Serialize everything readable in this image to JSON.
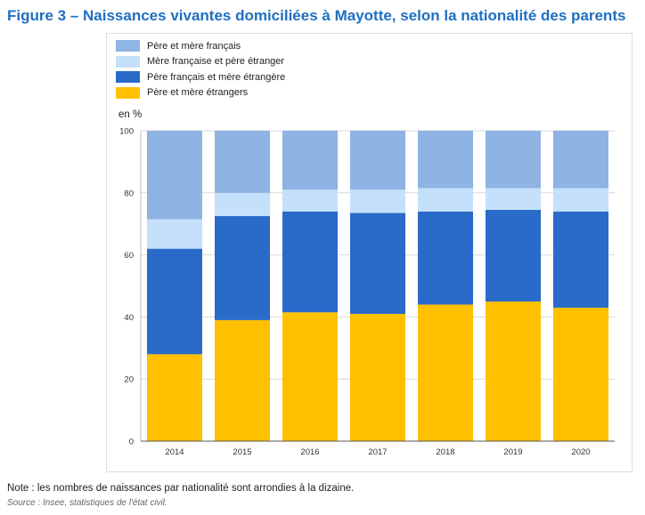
{
  "title": "Figure 3 – Naissances vivantes domiciliées à Mayotte, selon la nationalité des parents",
  "note": "Note : les nombres de naissances par nationalité sont arrondies à la dizaine.",
  "source": "Source : Insee, statistiques de l'état civil.",
  "chart_data": {
    "type": "bar",
    "stacked": true,
    "unit_label": "en %",
    "categories": [
      "2014",
      "2015",
      "2016",
      "2017",
      "2018",
      "2019",
      "2020"
    ],
    "ylim": [
      0,
      100
    ],
    "yticks": [
      "0",
      "20",
      "40",
      "60",
      "80",
      "100"
    ],
    "grid": true,
    "legend_position": "top-left",
    "series": [
      {
        "name": "Père et mère étrangers",
        "color": "#ffc000",
        "values": [
          28,
          39,
          41.5,
          41,
          44,
          45,
          43
        ]
      },
      {
        "name": "Père français et mère étrangère",
        "color": "#2a6ac8",
        "values": [
          34,
          33.5,
          32.5,
          32.5,
          30,
          29.5,
          31
        ]
      },
      {
        "name": "Mère française et père étranger",
        "color": "#c5e0fa",
        "values": [
          9.5,
          7.5,
          7,
          7.5,
          7.5,
          7,
          7.5
        ]
      },
      {
        "name": "Père et mère français",
        "color": "#8fb3e3",
        "values": [
          28.5,
          20,
          19,
          19,
          18.5,
          18.5,
          18.5
        ]
      }
    ],
    "legend_order": [
      3,
      2,
      1,
      0
    ]
  }
}
